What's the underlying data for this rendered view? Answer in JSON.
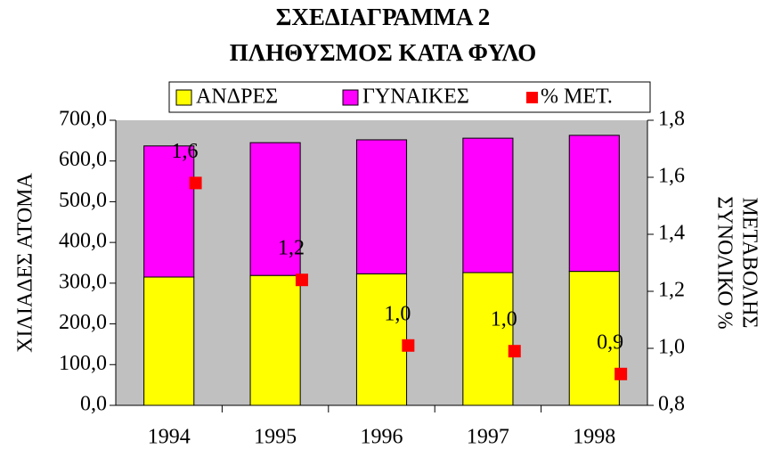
{
  "chart_data": {
    "type": "bar",
    "title": [
      "ΣΧΕΔΙΑΓΡΑΜΜΑ 2",
      "ΠΛΗΘΥΣΜΟΣ ΚΑΤΑ ΦΥΛΟ"
    ],
    "ylabel": "ΧΙΛΙΑΔΕΣ ΑΤΟΜΑ",
    "y2label": [
      "ΣΥΝΟΛΙΚΟ %",
      "ΜΕΤΑΒΟΛΗΣ"
    ],
    "categories": [
      "1994",
      "1995",
      "1996",
      "1997",
      "1998"
    ],
    "stacked": true,
    "series": [
      {
        "name": "ΑΝΔΡΕΣ",
        "color": "#ffff00",
        "values": [
          315,
          319,
          323,
          326,
          329
        ]
      },
      {
        "name": "ΓΥΝΑΙΚΕΣ",
        "color": "#ff00ff",
        "values": [
          322,
          326,
          329,
          330,
          334
        ]
      },
      {
        "name": "% ΜΕΤ.",
        "color": "#ff0000",
        "type": "scatter",
        "axis": "y2",
        "values": [
          1.58,
          1.24,
          1.01,
          0.99,
          0.91
        ],
        "value_labels": [
          "1,6",
          "1,2",
          "1,0",
          "1,0",
          "0,9"
        ]
      }
    ],
    "ylim": [
      0,
      700
    ],
    "yticks": [
      {
        "value": 0,
        "label": "0,0"
      },
      {
        "value": 100,
        "label": "100,0"
      },
      {
        "value": 200,
        "label": "200,0"
      },
      {
        "value": 300,
        "label": "300,0"
      },
      {
        "value": 400,
        "label": "400,0"
      },
      {
        "value": 500,
        "label": "500,0"
      },
      {
        "value": 600,
        "label": "600,0"
      },
      {
        "value": 700,
        "label": "700,0"
      }
    ],
    "y2lim": [
      0.8,
      1.8
    ],
    "y2ticks": [
      {
        "value": 0.8,
        "label": "0,8"
      },
      {
        "value": 1.0,
        "label": "1,0"
      },
      {
        "value": 1.2,
        "label": "1,2"
      },
      {
        "value": 1.4,
        "label": "1,4"
      },
      {
        "value": 1.6,
        "label": "1,6"
      },
      {
        "value": 1.8,
        "label": "1,8"
      }
    ],
    "plot_background": "#c0c0c0",
    "legend": "top"
  }
}
